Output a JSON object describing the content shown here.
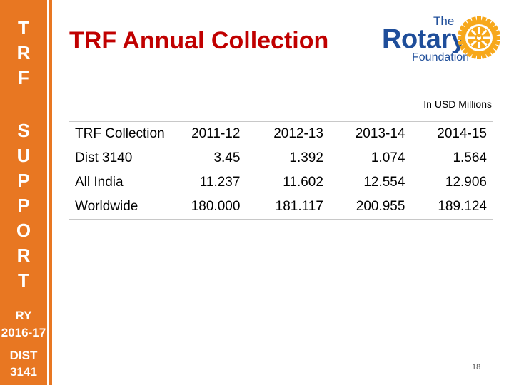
{
  "sidebar": {
    "letters": [
      "T",
      "R",
      "F",
      "S",
      "U",
      "P",
      "P",
      "O",
      "R",
      "T"
    ],
    "ry_label": "RY",
    "ry_year": "2016-17",
    "dist_label": "DIST",
    "dist_number": "3141",
    "color": "#e87722"
  },
  "slide": {
    "title": "TRF Annual Collection",
    "title_color": "#c00000",
    "units_note": "In USD Millions",
    "page_number": "18"
  },
  "logo": {
    "the": "The",
    "rotary": "Rotary",
    "foundation": "Foundation",
    "brand_color": "#1f4e9a",
    "wheel_color": "#f7a81b"
  },
  "table": {
    "header": [
      "TRF Collection",
      "2011-12",
      "2012-13",
      "2013-14",
      "2014-15"
    ],
    "rows": [
      [
        "Dist 3140",
        "3.45",
        "1.392",
        "1.074",
        "1.564"
      ],
      [
        "All India",
        "11.237",
        "11.602",
        "12.554",
        "12.906"
      ],
      [
        "Worldwide",
        "180.000",
        "181.117",
        "200.955",
        "189.124"
      ]
    ]
  }
}
